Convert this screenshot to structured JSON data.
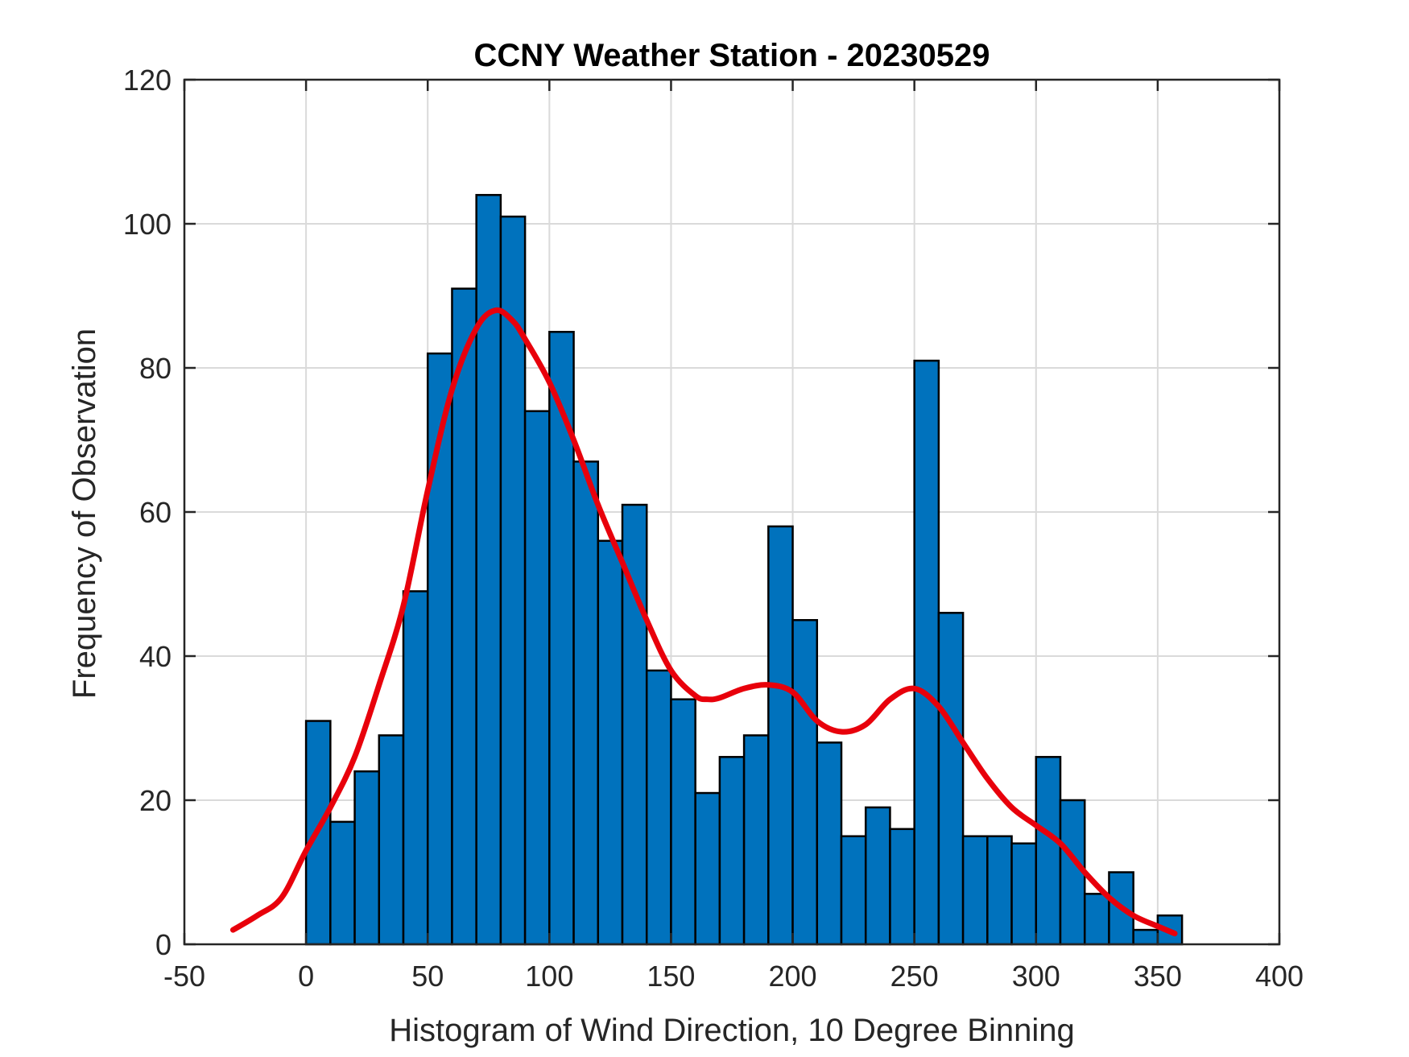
{
  "chart_data": {
    "type": "bar",
    "title": "CCNY Weather Station - 20230529",
    "xlabel": "Histogram of Wind Direction, 10 Degree Binning",
    "ylabel": "Frequency of Observation",
    "xlim": [
      -50,
      400
    ],
    "ylim": [
      0,
      120
    ],
    "xticks": [
      -50,
      0,
      50,
      100,
      150,
      200,
      250,
      300,
      350,
      400
    ],
    "yticks": [
      0,
      20,
      40,
      60,
      80,
      100,
      120
    ],
    "grid": true,
    "bin_width": 10,
    "bins": [
      {
        "x": 0,
        "value": 31
      },
      {
        "x": 10,
        "value": 17
      },
      {
        "x": 20,
        "value": 24
      },
      {
        "x": 30,
        "value": 29
      },
      {
        "x": 40,
        "value": 49
      },
      {
        "x": 50,
        "value": 82
      },
      {
        "x": 60,
        "value": 91
      },
      {
        "x": 70,
        "value": 104
      },
      {
        "x": 80,
        "value": 101
      },
      {
        "x": 90,
        "value": 74
      },
      {
        "x": 100,
        "value": 85
      },
      {
        "x": 110,
        "value": 67
      },
      {
        "x": 120,
        "value": 56
      },
      {
        "x": 130,
        "value": 61
      },
      {
        "x": 140,
        "value": 38
      },
      {
        "x": 150,
        "value": 34
      },
      {
        "x": 160,
        "value": 21
      },
      {
        "x": 170,
        "value": 26
      },
      {
        "x": 180,
        "value": 29
      },
      {
        "x": 190,
        "value": 58
      },
      {
        "x": 200,
        "value": 45
      },
      {
        "x": 210,
        "value": 28
      },
      {
        "x": 220,
        "value": 15
      },
      {
        "x": 230,
        "value": 19
      },
      {
        "x": 240,
        "value": 16
      },
      {
        "x": 250,
        "value": 81
      },
      {
        "x": 260,
        "value": 46
      },
      {
        "x": 270,
        "value": 15
      },
      {
        "x": 280,
        "value": 15
      },
      {
        "x": 290,
        "value": 14
      },
      {
        "x": 300,
        "value": 26
      },
      {
        "x": 310,
        "value": 20
      },
      {
        "x": 320,
        "value": 7
      },
      {
        "x": 330,
        "value": 10
      },
      {
        "x": 340,
        "value": 2
      },
      {
        "x": 350,
        "value": 4
      }
    ],
    "fit_curve": {
      "points": [
        [
          -30,
          2
        ],
        [
          -20,
          4
        ],
        [
          -10,
          6.5
        ],
        [
          0,
          13
        ],
        [
          10,
          19
        ],
        [
          20,
          26
        ],
        [
          30,
          36
        ],
        [
          40,
          47
        ],
        [
          50,
          63
        ],
        [
          60,
          77
        ],
        [
          70,
          85.5
        ],
        [
          78,
          88
        ],
        [
          85,
          86.5
        ],
        [
          90,
          84
        ],
        [
          100,
          78
        ],
        [
          110,
          70
        ],
        [
          120,
          61
        ],
        [
          130,
          53
        ],
        [
          140,
          45
        ],
        [
          150,
          38
        ],
        [
          160,
          34.5
        ],
        [
          165,
          34
        ],
        [
          170,
          34.2
        ],
        [
          180,
          35.5
        ],
        [
          190,
          36
        ],
        [
          200,
          35
        ],
        [
          210,
          31
        ],
        [
          220,
          29.5
        ],
        [
          230,
          30.5
        ],
        [
          240,
          34
        ],
        [
          250,
          35.5
        ],
        [
          260,
          33
        ],
        [
          270,
          28
        ],
        [
          280,
          23
        ],
        [
          290,
          19
        ],
        [
          300,
          16.5
        ],
        [
          310,
          14
        ],
        [
          320,
          10
        ],
        [
          330,
          6.5
        ],
        [
          340,
          4
        ],
        [
          350,
          2.5
        ],
        [
          357,
          1.5
        ]
      ]
    },
    "colors": {
      "bar_fill": "#0072BD",
      "bar_edge": "#000000",
      "curve": "#E8000B",
      "grid": "#DADADA",
      "axis": "#262626"
    }
  }
}
